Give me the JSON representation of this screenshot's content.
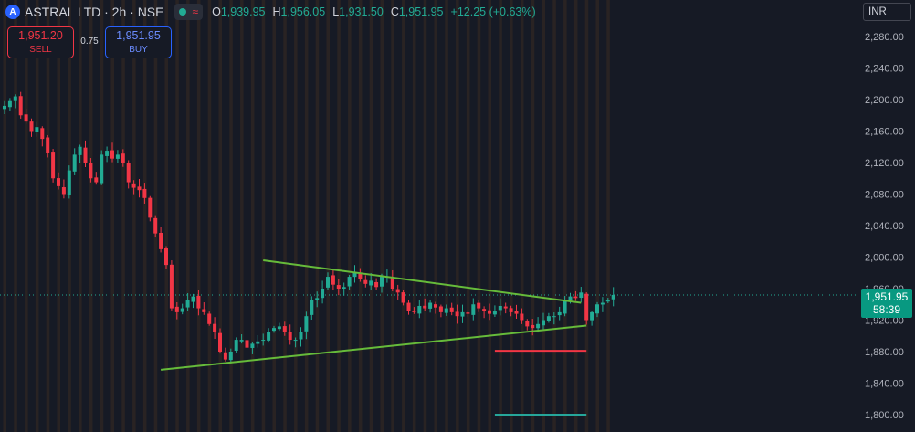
{
  "header": {
    "symbol": "ASTRAL LTD · 2h · NSE",
    "logo_letter": "A",
    "wave_glyph": "≈",
    "ohlc": [
      {
        "k": "O",
        "v": "1,939.95"
      },
      {
        "k": "H",
        "v": "1,956.05"
      },
      {
        "k": "L",
        "v": "1,931.50"
      },
      {
        "k": "C",
        "v": "1,951.95"
      },
      {
        "k": "",
        "v": "+12.25 (+0.63%)"
      }
    ]
  },
  "trade": {
    "sell_price": "1,951.20",
    "sell_label": "SELL",
    "spread": "0.75",
    "buy_price": "1,951.95",
    "buy_label": "BUY"
  },
  "currency": "INR",
  "price_badge": {
    "price": "1,951.95",
    "countdown": "58:39"
  },
  "colors": {
    "bg": "#161a25",
    "up": "#22ab94",
    "down": "#f23645",
    "trend": "#66bb3a",
    "session": "#3a2c22"
  },
  "chart_data": {
    "type": "candlestick",
    "symbol": "ASTRAL LTD",
    "interval": "2h",
    "exchange": "NSE",
    "ylim": [
      1790,
      2300
    ],
    "y_ticks": [
      "2,280.00",
      "2,240.00",
      "2,200.00",
      "2,160.00",
      "2,120.00",
      "2,080.00",
      "2,040.00",
      "2,000.00",
      "1,960.00",
      "1,920.00",
      "1,880.00",
      "1,840.00",
      "1,800.00"
    ],
    "y_tick_values": [
      2280,
      2240,
      2200,
      2160,
      2120,
      2080,
      2040,
      2000,
      1960,
      1920,
      1880,
      1840,
      1800
    ],
    "last_price": 1951.95,
    "closes": [
      2192,
      2198,
      2204,
      2180,
      2172,
      2160,
      2165,
      2150,
      2132,
      2100,
      2090,
      2080,
      2110,
      2130,
      2140,
      2120,
      2100,
      2095,
      2130,
      2135,
      2125,
      2130,
      2120,
      2095,
      2088,
      2085,
      2075,
      2050,
      2030,
      2010,
      1990,
      1935,
      1930,
      1935,
      1945,
      1950,
      1935,
      1930,
      1915,
      1905,
      1880,
      1870,
      1880,
      1895,
      1895,
      1885,
      1890,
      1893,
      1895,
      1905,
      1910,
      1912,
      1905,
      1895,
      1895,
      1905,
      1925,
      1945,
      1948,
      1960,
      1975,
      1965,
      1960,
      1962,
      1975,
      1980,
      1972,
      1966,
      1970,
      1962,
      1975,
      1975,
      1960,
      1955,
      1942,
      1932,
      1930,
      1938,
      1935,
      1942,
      1936,
      1930,
      1935,
      1930,
      1925,
      1930,
      1928,
      1940,
      1935,
      1932,
      1928,
      1932,
      1938,
      1935,
      1930,
      1928,
      1920,
      1912,
      1910,
      1915,
      1920,
      1925,
      1925,
      1930,
      1945,
      1950,
      1948,
      1955,
      1920,
      1930,
      1940,
      1942,
      1945,
      1951.95
    ],
    "trendlines": [
      {
        "name": "upper",
        "points": [
          [
            48,
            1996
          ],
          [
            107,
            1942
          ]
        ]
      },
      {
        "name": "lower",
        "points": [
          [
            29,
            1857
          ],
          [
            108,
            1913
          ]
        ]
      }
    ],
    "hlines": [
      {
        "name": "red-level",
        "value": 1881,
        "from": 91,
        "to": 108,
        "color": "#f23645"
      },
      {
        "name": "teal-level",
        "value": 1800,
        "from": 91,
        "to": 108,
        "color": "#26a69a"
      }
    ]
  }
}
